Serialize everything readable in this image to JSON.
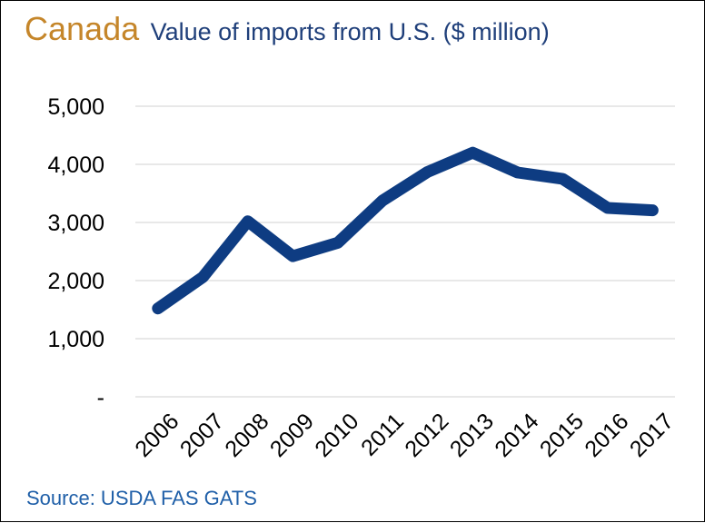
{
  "header": {
    "country": "Canada",
    "subtitle": "Value of imports from U.S. ($ million)"
  },
  "source": "Source: USDA FAS GATS",
  "colors": {
    "line": "#0E3C82",
    "grid": "#D9D9D9",
    "country_title": "#C5862A",
    "subtitle": "#1F3F7A",
    "source": "#1F5FA8"
  },
  "chart_data": {
    "type": "line",
    "title": "Value of imports from U.S. ($ million)",
    "xlabel": "",
    "ylabel": "",
    "categories": [
      "2006",
      "2007",
      "2008",
      "2009",
      "2010",
      "2011",
      "2012",
      "2013",
      "2014",
      "2015",
      "2016",
      "2017"
    ],
    "series": [
      {
        "values": [
          1520,
          2060,
          3020,
          2420,
          2650,
          3380,
          3870,
          4200,
          3860,
          3750,
          3250,
          3210
        ]
      }
    ],
    "ylim": [
      0,
      5000
    ],
    "yticks": [
      0,
      1000,
      2000,
      3000,
      4000,
      5000
    ],
    "ytick_labels": [
      "-",
      "1,000",
      "2,000",
      "3,000",
      "4,000",
      "5,000"
    ],
    "grid": true,
    "legend": "none"
  }
}
